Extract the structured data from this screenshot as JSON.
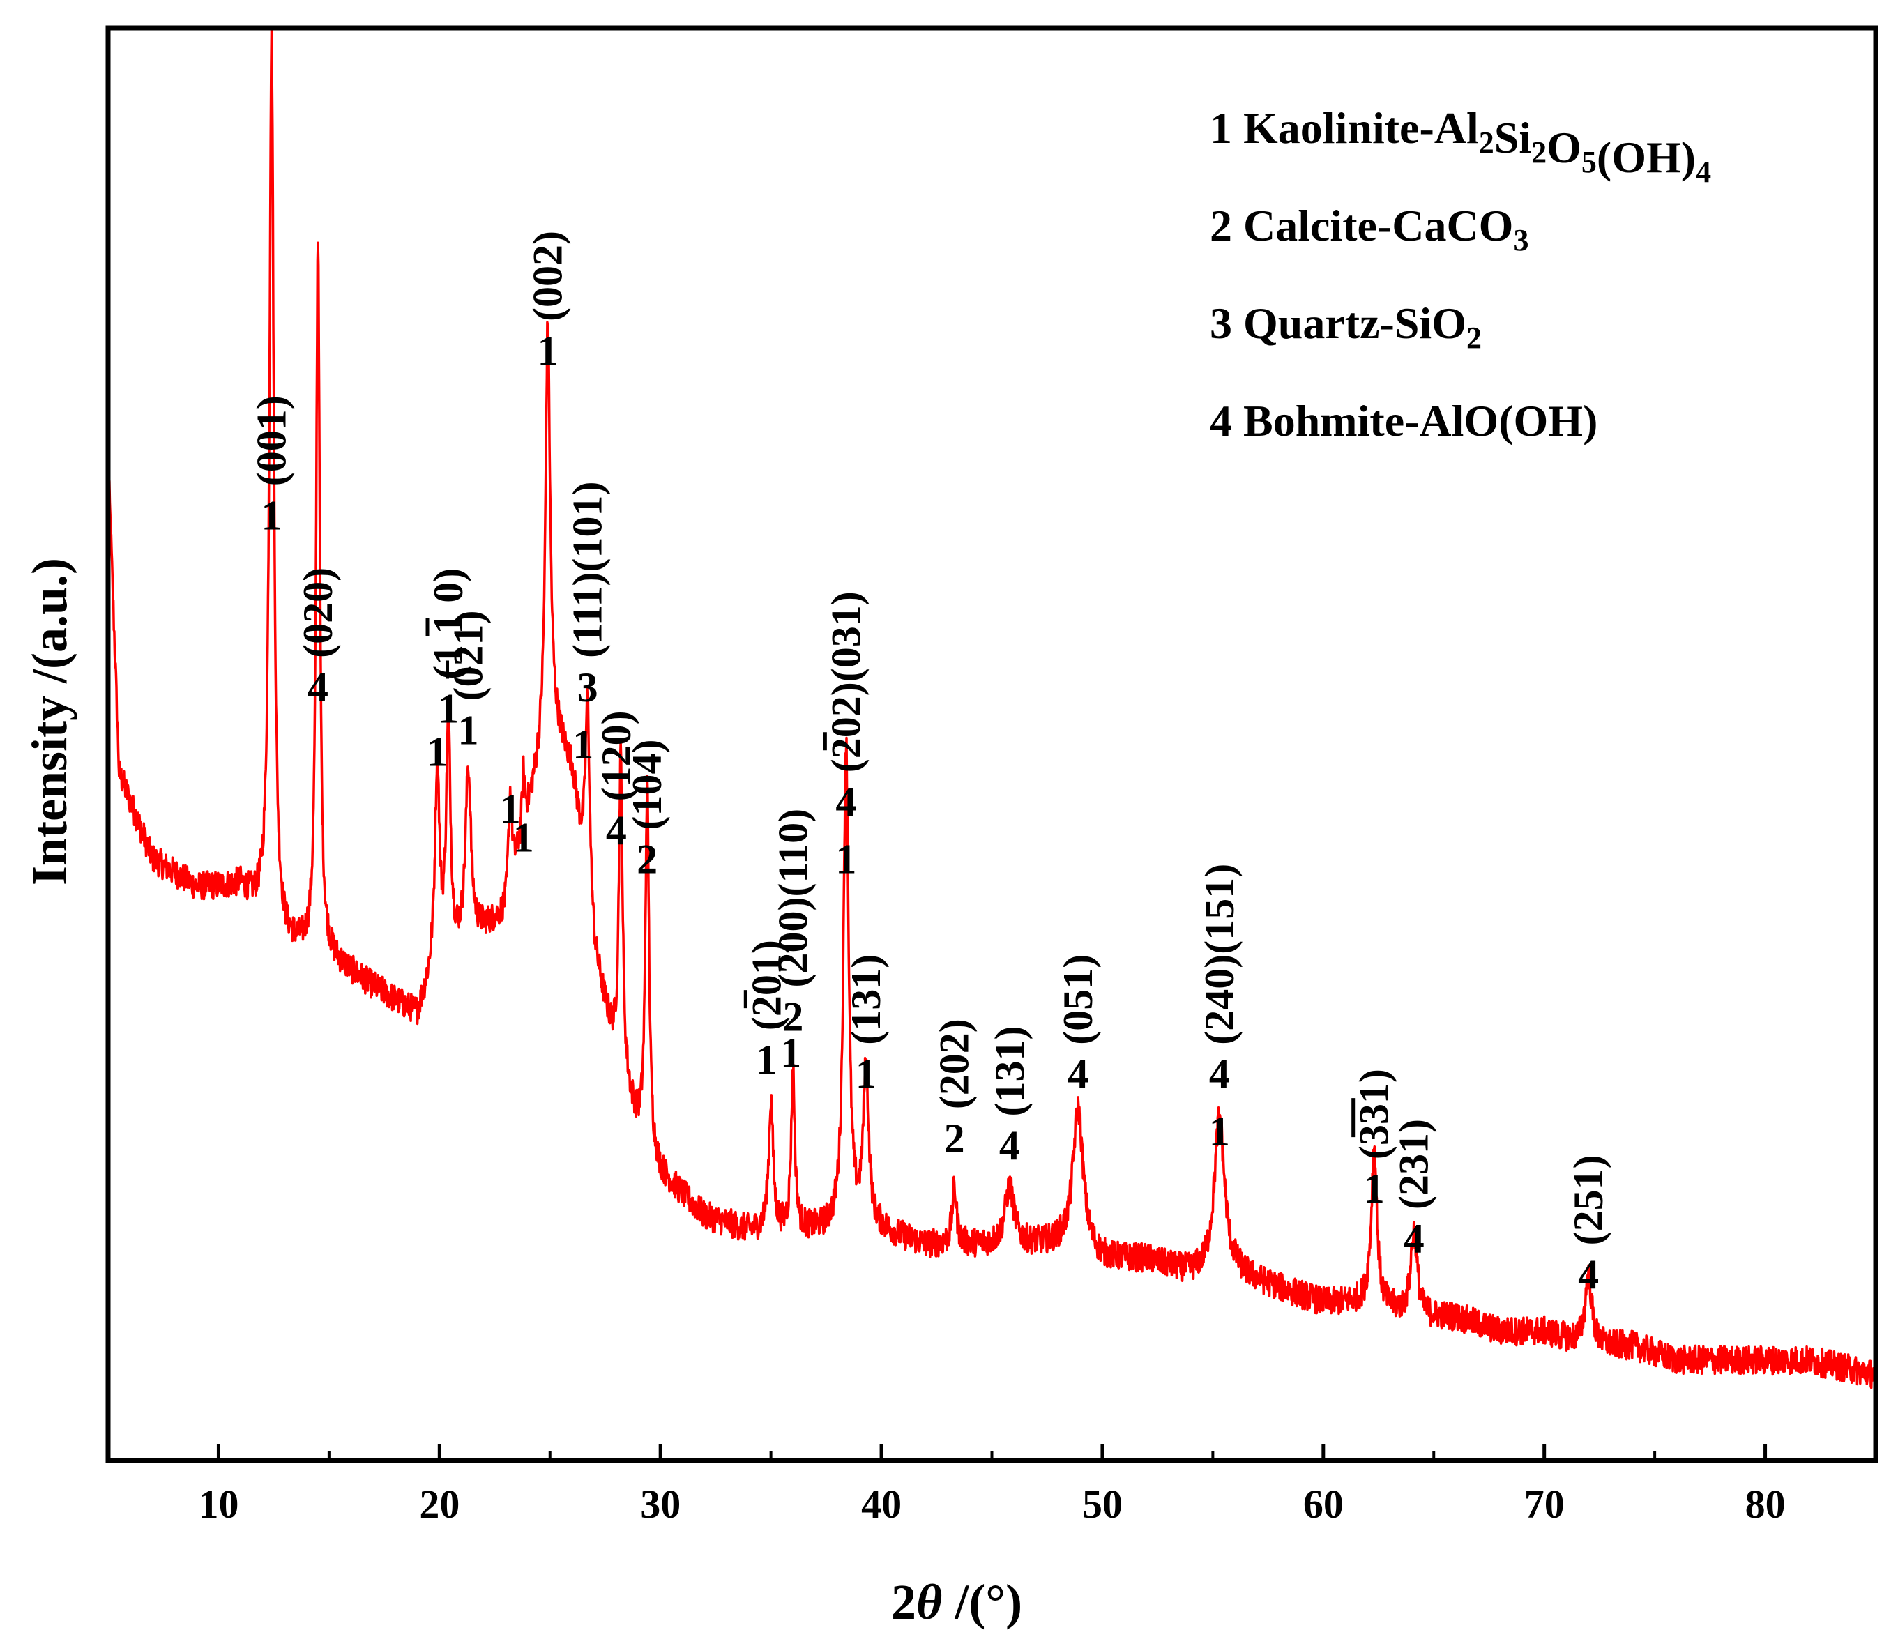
{
  "chart_data": {
    "type": "line",
    "xlabel": "2θ /(°)",
    "xlabel_parts": {
      "num": "2",
      "sym": "θ",
      "unit": " /(°)"
    },
    "ylabel": "Intensity /(a.u.)",
    "xlim": [
      5,
      85
    ],
    "ylim": [
      0,
      100
    ],
    "x_ticks": [
      10,
      20,
      30,
      40,
      50,
      60,
      70,
      80
    ],
    "x_tick_labels": [
      "10",
      "20",
      "30",
      "40",
      "50",
      "60",
      "70",
      "80"
    ],
    "y_ticks_shown": false,
    "line_color": "#ff0000",
    "baseline": [
      [
        5,
        70
      ],
      [
        5.5,
        48
      ],
      [
        7,
        42
      ],
      [
        9,
        40
      ],
      [
        11,
        40
      ],
      [
        13,
        36
      ],
      [
        15,
        35
      ],
      [
        17,
        33
      ],
      [
        19,
        31
      ],
      [
        19.7,
        34
      ],
      [
        20.5,
        35
      ],
      [
        22,
        37
      ],
      [
        23,
        38
      ],
      [
        24,
        45
      ],
      [
        25,
        52
      ],
      [
        26,
        48
      ],
      [
        27,
        35
      ],
      [
        28,
        28
      ],
      [
        29,
        23
      ],
      [
        30,
        20
      ],
      [
        32,
        17
      ],
      [
        34,
        16
      ],
      [
        36,
        16
      ],
      [
        38,
        16
      ],
      [
        40,
        16
      ],
      [
        42,
        15
      ],
      [
        44,
        15
      ],
      [
        46,
        15
      ],
      [
        48,
        15
      ],
      [
        50,
        14
      ],
      [
        52,
        14
      ],
      [
        54,
        13
      ],
      [
        56,
        13
      ],
      [
        58,
        12
      ],
      [
        60,
        11
      ],
      [
        62,
        11
      ],
      [
        64,
        10
      ],
      [
        66,
        10
      ],
      [
        68,
        9
      ],
      [
        70,
        9
      ],
      [
        72,
        8
      ],
      [
        74,
        8
      ],
      [
        76,
        7
      ],
      [
        78,
        7
      ],
      [
        80,
        7
      ],
      [
        82,
        7
      ],
      [
        85,
        6
      ]
    ],
    "peaks": [
      {
        "pos": 12.4,
        "height": 62,
        "width": 0.12
      },
      {
        "pos": 14.5,
        "height": 50,
        "width": 0.1
      },
      {
        "pos": 19.9,
        "height": 14,
        "width": 0.12
      },
      {
        "pos": 20.4,
        "height": 16,
        "width": 0.12
      },
      {
        "pos": 21.3,
        "height": 12,
        "width": 0.15
      },
      {
        "pos": 23.2,
        "height": 7,
        "width": 0.1
      },
      {
        "pos": 23.8,
        "height": 4,
        "width": 0.08
      },
      {
        "pos": 24.9,
        "height": 28,
        "width": 0.12
      },
      {
        "pos": 26.7,
        "height": 14,
        "width": 0.12
      },
      {
        "pos": 28.2,
        "height": 22,
        "width": 0.1
      },
      {
        "pos": 29.4,
        "height": 25,
        "width": 0.1
      },
      {
        "pos": 35.0,
        "height": 9,
        "width": 0.12
      },
      {
        "pos": 36.0,
        "height": 11,
        "width": 0.1
      },
      {
        "pos": 38.4,
        "height": 34,
        "width": 0.14
      },
      {
        "pos": 39.3,
        "height": 11,
        "width": 0.15
      },
      {
        "pos": 43.3,
        "height": 4,
        "width": 0.12
      },
      {
        "pos": 45.8,
        "height": 4,
        "width": 0.25
      },
      {
        "pos": 48.9,
        "height": 10,
        "width": 0.28
      },
      {
        "pos": 55.3,
        "height": 11,
        "width": 0.28
      },
      {
        "pos": 62.3,
        "height": 11,
        "width": 0.15
      },
      {
        "pos": 64.1,
        "height": 6,
        "width": 0.18
      },
      {
        "pos": 72.0,
        "height": 5,
        "width": 0.18
      }
    ],
    "peak_labels": [
      {
        "x": 12.4,
        "y": 65,
        "num": "1",
        "hkl": "(001)",
        "hkl_over": ""
      },
      {
        "x": 14.5,
        "y": 53,
        "num": "4",
        "hkl": "(020)",
        "hkl_over": ""
      },
      {
        "x": 19.9,
        "y": 48.5,
        "num": "1",
        "hkl": "",
        "hkl_over": ""
      },
      {
        "x": 20.4,
        "y": 51.5,
        "num": "1",
        "hkl": "(1 1 0)",
        "hkl_over": "1",
        "hkl_over_pos": 2
      },
      {
        "x": 21.3,
        "y": 50,
        "num": "1",
        "hkl": "(021)",
        "hkl_over": "0",
        "hkl_over_pos": 1
      },
      {
        "x": 23.2,
        "y": 44.5,
        "num": "1",
        "hkl": "",
        "hkl_over": ""
      },
      {
        "x": 23.8,
        "y": 42.5,
        "num": "1",
        "hkl": "",
        "hkl_over": ""
      },
      {
        "x": 24.9,
        "y": 76.5,
        "num": "1",
        "hkl": "(002)",
        "hkl_over": ""
      },
      {
        "x": 26.7,
        "y": 53,
        "num": "3",
        "hkl": "(111)(101)",
        "hkl_over": ""
      },
      {
        "x": 26.5,
        "y": 49,
        "num": "1",
        "hkl": "",
        "hkl_over": ""
      },
      {
        "x": 28.0,
        "y": 43,
        "num": "4",
        "hkl": "(120)",
        "hkl_over": ""
      },
      {
        "x": 29.4,
        "y": 41,
        "num": "2",
        "hkl": "(104)",
        "hkl_over": ""
      },
      {
        "x": 34.8,
        "y": 27,
        "num": "1",
        "hkl": "(201)",
        "hkl_over": "2",
        "hkl_over_pos": 1
      },
      {
        "x": 36.0,
        "y": 30,
        "num": "2",
        "hkl": "(200)(110)",
        "hkl_over": ""
      },
      {
        "x": 35.9,
        "y": 27.5,
        "num": "1",
        "hkl": "",
        "hkl_over": ""
      },
      {
        "x": 38.4,
        "y": 45,
        "num": "4",
        "hkl": "(202)(031)",
        "hkl_over": "2",
        "hkl_over_pos": 1
      },
      {
        "x": 38.4,
        "y": 41,
        "num": "1",
        "hkl": "",
        "hkl_over": ""
      },
      {
        "x": 39.3,
        "y": 26,
        "num": "1",
        "hkl": "(131)",
        "hkl_over": ""
      },
      {
        "x": 43.3,
        "y": 21.5,
        "num": "2",
        "hkl": "(202)",
        "hkl_over": ""
      },
      {
        "x": 45.8,
        "y": 21,
        "num": "4",
        "hkl": "(131)",
        "hkl_over": ""
      },
      {
        "x": 48.9,
        "y": 26,
        "num": "4",
        "hkl": "(051)",
        "hkl_over": ""
      },
      {
        "x": 55.3,
        "y": 26,
        "num": "4",
        "hkl": "(240)(151)",
        "hkl_over": ""
      },
      {
        "x": 55.3,
        "y": 22,
        "num": "1",
        "hkl": "",
        "hkl_over": ""
      },
      {
        "x": 62.3,
        "y": 18,
        "num": "1",
        "hkl": "(331)",
        "hkl_over": "33",
        "hkl_over_pos": 1
      },
      {
        "x": 64.1,
        "y": 14.5,
        "num": "4",
        "hkl": "(231)",
        "hkl_over": ""
      },
      {
        "x": 72.0,
        "y": 12,
        "num": "4",
        "hkl": "(251)",
        "hkl_over": ""
      }
    ],
    "legend": [
      {
        "num": "1",
        "name": "Kaolinite-Al",
        "sub1": "2",
        "mid1": "Si",
        "sub2": "2",
        "mid2": "O",
        "sub3": "5",
        "mid3": "(OH)",
        "sub4": "4"
      },
      {
        "num": "2",
        "name": "Calcite-CaCO",
        "sub1": "3"
      },
      {
        "num": "3",
        "name": "Quartz-SiO",
        "sub1": "2"
      },
      {
        "num": "4",
        "name": "Bohmite-AlO(OH)"
      }
    ],
    "legend_position": "top-right"
  }
}
